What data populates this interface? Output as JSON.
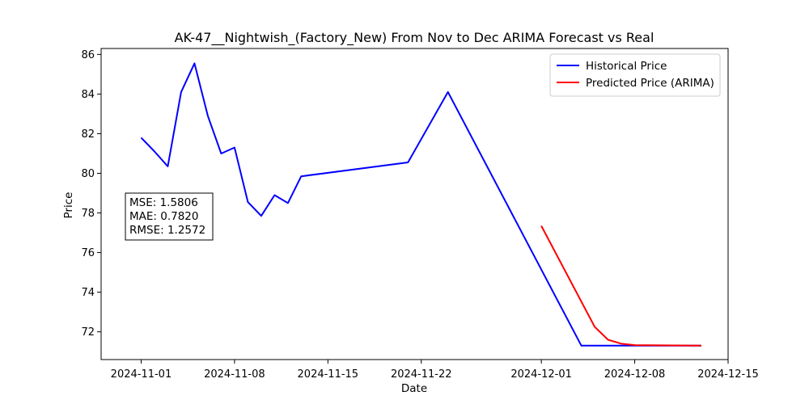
{
  "chart_data": {
    "type": "line",
    "title": "AK-47__Nightwish_(Factory_New) From Nov to Dec ARIMA Forecast vs Real",
    "xlabel": "Date",
    "ylabel": "Price",
    "x_range": [
      "2024-10-29",
      "2024-12-15"
    ],
    "ylim": [
      70.6,
      86.3
    ],
    "x_ticks": [
      "2024-11-01",
      "2024-11-08",
      "2024-11-15",
      "2024-11-22",
      "2024-12-01",
      "2024-12-08",
      "2024-12-15"
    ],
    "y_ticks": [
      72,
      74,
      76,
      78,
      80,
      82,
      84,
      86
    ],
    "grid": false,
    "legend_position": "top-right",
    "series": [
      {
        "name": "Historical Price",
        "color": "#0000ff",
        "points": [
          {
            "x": "2024-11-01",
            "y": 81.8
          },
          {
            "x": "2024-11-02",
            "y": 81.1
          },
          {
            "x": "2024-11-03",
            "y": 80.35
          },
          {
            "x": "2024-11-04",
            "y": 84.1
          },
          {
            "x": "2024-11-05",
            "y": 85.55
          },
          {
            "x": "2024-11-06",
            "y": 82.9
          },
          {
            "x": "2024-11-07",
            "y": 81.0
          },
          {
            "x": "2024-11-08",
            "y": 81.3
          },
          {
            "x": "2024-11-09",
            "y": 78.55
          },
          {
            "x": "2024-11-10",
            "y": 77.85
          },
          {
            "x": "2024-11-11",
            "y": 78.9
          },
          {
            "x": "2024-11-12",
            "y": 78.5
          },
          {
            "x": "2024-11-13",
            "y": 79.85
          },
          {
            "x": "2024-11-21",
            "y": 80.55
          },
          {
            "x": "2024-11-24",
            "y": 84.1
          },
          {
            "x": "2024-12-04",
            "y": 71.3
          },
          {
            "x": "2024-12-13",
            "y": 71.3
          }
        ]
      },
      {
        "name": "Predicted Price (ARIMA)",
        "color": "#ff0000",
        "points": [
          {
            "x": "2024-12-01",
            "y": 77.35
          },
          {
            "x": "2024-12-05",
            "y": 72.25
          },
          {
            "x": "2024-12-06",
            "y": 71.6
          },
          {
            "x": "2024-12-07",
            "y": 71.4
          },
          {
            "x": "2024-12-08",
            "y": 71.33
          },
          {
            "x": "2024-12-13",
            "y": 71.3
          }
        ]
      }
    ],
    "annotation": [
      "MSE: 1.5806",
      "MAE: 0.7820",
      "RMSE: 1.2572"
    ]
  }
}
